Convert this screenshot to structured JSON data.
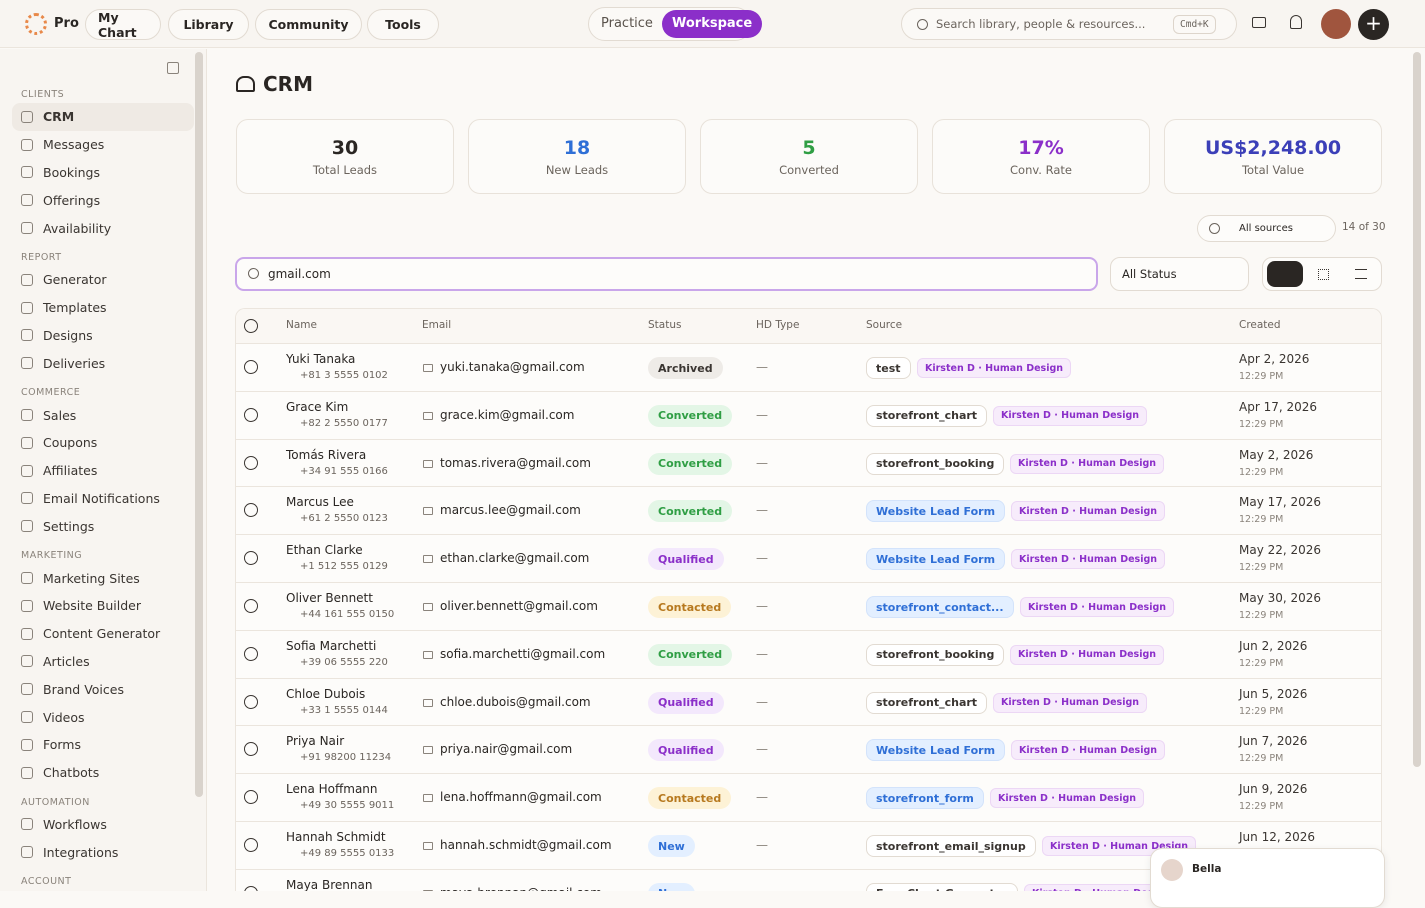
{
  "nav": {
    "brand": "Pro",
    "items": [
      "My Chart",
      "Library",
      "Community",
      "Tools"
    ],
    "toggle": [
      "Practice",
      "Workspace"
    ],
    "toggle_active": 1,
    "search": "Search library, people & resources...",
    "shortcut": "Cmd+K"
  },
  "sidebar": {
    "active": [
      0,
      0
    ],
    "sections": [
      {
        "title": "CLIENTS",
        "items": [
          "CRM",
          "Messages",
          "Bookings",
          "Offerings",
          "Availability"
        ]
      },
      {
        "title": "REPORT",
        "items": [
          "Generator",
          "Templates",
          "Designs",
          "Deliveries"
        ]
      },
      {
        "title": "COMMERCE",
        "items": [
          "Sales",
          "Coupons",
          "Affiliates",
          "Email Notifications",
          "Settings"
        ]
      },
      {
        "title": "MARKETING",
        "items": [
          "Marketing Sites",
          "Website Builder",
          "Content Generator",
          "Articles",
          "Brand Voices",
          "Videos",
          "Forms",
          "Chatbots"
        ]
      },
      {
        "title": "AUTOMATION",
        "items": [
          "Workflows",
          "Integrations"
        ]
      },
      {
        "title": "ACCOUNT",
        "items": []
      }
    ]
  },
  "page": {
    "title": "CRM"
  },
  "stats": [
    {
      "value": "30",
      "label": "Total Leads",
      "color": "#2a2623"
    },
    {
      "value": "18",
      "label": "New Leads",
      "color": "#2f6fd6"
    },
    {
      "value": "5",
      "label": "Converted",
      "color": "#2f9e44"
    },
    {
      "value": "17%",
      "label": "Conv. Rate",
      "color": "#8b2fc9"
    },
    {
      "value": "US$2,248.00",
      "label": "Total Value",
      "color": "#3b3fb8"
    }
  ],
  "filters": {
    "sources": "All sources",
    "count": "14 of 30",
    "search": "gmail.com",
    "status": "All Status"
  },
  "status_colors": {
    "Archived": [
      "#eeebe7",
      "#3a3531"
    ],
    "Converted": [
      "#e3f6e6",
      "#2f9e44"
    ],
    "Qualified": [
      "#f3e8fc",
      "#8b2fc9"
    ],
    "Contacted": [
      "#fdf2d6",
      "#b7791f"
    ],
    "New": [
      "#e3efff",
      "#2f6fd6"
    ]
  },
  "table": {
    "columns": [
      "Name",
      "Email",
      "Status",
      "HD Type",
      "Source",
      "Created"
    ],
    "rows": [
      {
        "name": "Yuki Tanaka",
        "phone": "+81 3 5555 0102",
        "email": "yuki.tanaka@gmail.com",
        "status": "Archived",
        "hd": "—",
        "source": "test",
        "source_color": "plain",
        "tag": "Kirsten D · Human Design",
        "date": "Apr 2, 2026",
        "time": "12:29 PM"
      },
      {
        "name": "Grace Kim",
        "phone": "+82 2 5550 0177",
        "email": "grace.kim@gmail.com",
        "status": "Converted",
        "hd": "—",
        "source": "storefront_chart",
        "source_color": "plain",
        "tag": "Kirsten D · Human Design",
        "date": "Apr 17, 2026",
        "time": "12:29 PM"
      },
      {
        "name": "Tomás Rivera",
        "phone": "+34 91 555 0166",
        "email": "tomas.rivera@gmail.com",
        "status": "Converted",
        "hd": "—",
        "source": "storefront_booking",
        "source_color": "plain",
        "tag": "Kirsten D · Human Design",
        "date": "May 2, 2026",
        "time": "12:29 PM"
      },
      {
        "name": "Marcus Lee",
        "phone": "+61 2 5550 0123",
        "email": "marcus.lee@gmail.com",
        "status": "Converted",
        "hd": "—",
        "source": "Website Lead Form",
        "source_color": "blue",
        "tag": "Kirsten D · Human Design",
        "date": "May 17, 2026",
        "time": "12:29 PM"
      },
      {
        "name": "Ethan Clarke",
        "phone": "+1 512 555 0129",
        "email": "ethan.clarke@gmail.com",
        "status": "Qualified",
        "hd": "—",
        "source": "Website Lead Form",
        "source_color": "blue",
        "tag": "Kirsten D · Human Design",
        "date": "May 22, 2026",
        "time": "12:29 PM"
      },
      {
        "name": "Oliver Bennett",
        "phone": "+44 161 555 0150",
        "email": "oliver.bennett@gmail.com",
        "status": "Contacted",
        "hd": "—",
        "source": "storefront_contact...",
        "source_color": "blue",
        "tag": "Kirsten D · Human Design",
        "date": "May 30, 2026",
        "time": "12:29 PM"
      },
      {
        "name": "Sofia Marchetti",
        "phone": "+39 06 5555 220",
        "email": "sofia.marchetti@gmail.com",
        "status": "Converted",
        "hd": "—",
        "source": "storefront_booking",
        "source_color": "plain",
        "tag": "Kirsten D · Human Design",
        "date": "Jun 2, 2026",
        "time": "12:29 PM"
      },
      {
        "name": "Chloe Dubois",
        "phone": "+33 1 5555 0144",
        "email": "chloe.dubois@gmail.com",
        "status": "Qualified",
        "hd": "—",
        "source": "storefront_chart",
        "source_color": "plain",
        "tag": "Kirsten D · Human Design",
        "date": "Jun 5, 2026",
        "time": "12:29 PM"
      },
      {
        "name": "Priya Nair",
        "phone": "+91 98200 11234",
        "email": "priya.nair@gmail.com",
        "status": "Qualified",
        "hd": "—",
        "source": "Website Lead Form",
        "source_color": "blue",
        "tag": "Kirsten D · Human Design",
        "date": "Jun 7, 2026",
        "time": "12:29 PM"
      },
      {
        "name": "Lena Hoffmann",
        "phone": "+49 30 5555 9011",
        "email": "lena.hoffmann@gmail.com",
        "status": "Contacted",
        "hd": "—",
        "source": "storefront_form",
        "source_color": "blue",
        "tag": "Kirsten D · Human Design",
        "date": "Jun 9, 2026",
        "time": "12:29 PM"
      },
      {
        "name": "Hannah Schmidt",
        "phone": "+49 89 5555 0133",
        "email": "hannah.schmidt@gmail.com",
        "status": "New",
        "hd": "—",
        "source": "storefront_email_signup",
        "source_color": "plain",
        "tag": "Kirsten D · Human Design",
        "date": "Jun 12, 2026"
      },
      {
        "name": "Maya Brennan",
        "email": "maya.brennan@gmail.com",
        "status": "New",
        "source": "Free Chart Generator",
        "source_color": "plain",
        "tag": "Kirsten D · Human Design"
      }
    ]
  },
  "chat": {
    "name": "Bella"
  }
}
